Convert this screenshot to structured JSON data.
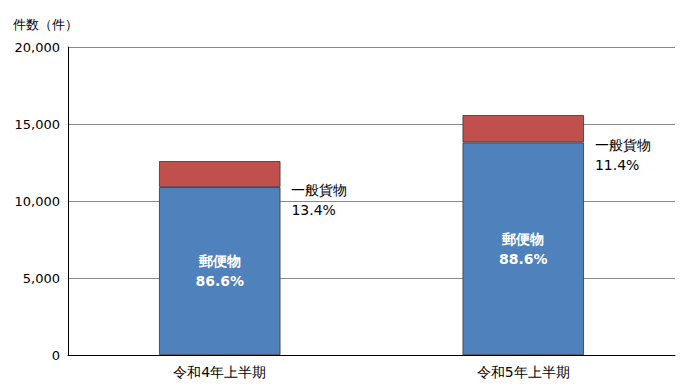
{
  "chart_data": {
    "type": "bar",
    "stacked": true,
    "grid": true,
    "y_label": "件数（件）",
    "categories": [
      "令和4年上半期",
      "令和5年上半期"
    ],
    "series": [
      {
        "name": "郵便物",
        "color": "#4f81bd",
        "values": [
          10900,
          13800
        ],
        "share_labels": [
          "86.6%",
          "88.6%"
        ]
      },
      {
        "name": "一般貨物",
        "color": "#c0504d",
        "values": [
          1690,
          1780
        ],
        "share_labels": [
          "13.4%",
          "11.4%"
        ]
      }
    ],
    "ylim": [
      0,
      20000
    ],
    "yticks": [
      0,
      {
        "value": 5000,
        "label": "5,000"
      },
      {
        "value": 10000,
        "label": "10,000"
      },
      {
        "value": 15000,
        "label": "15,000"
      },
      {
        "value": 20000,
        "label": "20,000"
      }
    ]
  }
}
